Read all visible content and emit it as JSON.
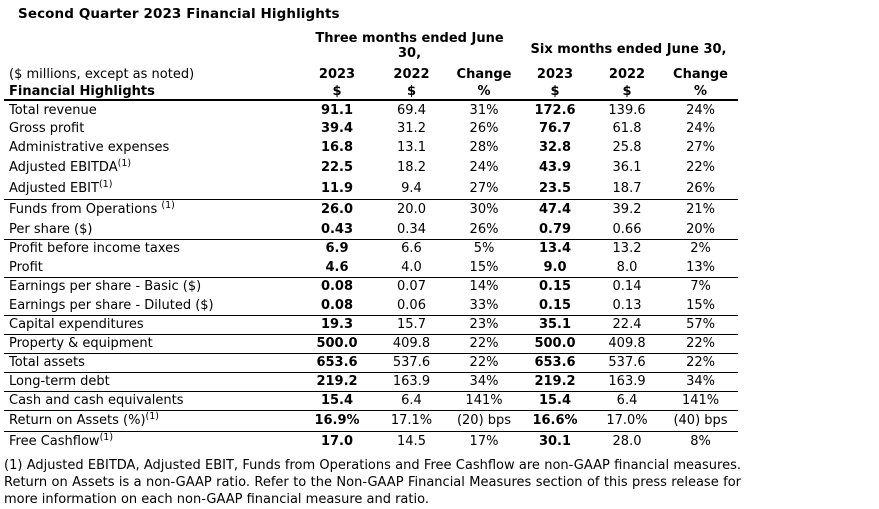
{
  "title": "Second Quarter 2023 Financial Highlights",
  "table": {
    "group_headers": [
      {
        "line1": "Three months ended June",
        "line2": "30,"
      },
      {
        "label": "Six months ended June 30,"
      }
    ],
    "meta_label": "($ millions, except as noted)",
    "col_years": [
      "2023",
      "2022",
      "Change",
      "2023",
      "2022",
      "Change"
    ],
    "section_label": "Financial Highlights",
    "col_units": [
      "$",
      "$",
      "%",
      "$",
      "$",
      "%"
    ],
    "rows": [
      {
        "label": "Total revenue",
        "sup": "",
        "values": [
          "91.1",
          "69.4",
          "31%",
          "172.6",
          "139.6",
          "24%"
        ],
        "rule": false
      },
      {
        "label": "Gross profit",
        "sup": "",
        "values": [
          "39.4",
          "31.2",
          "26%",
          "76.7",
          "61.8",
          "24%"
        ],
        "rule": false
      },
      {
        "label": "Administrative expenses",
        "sup": "",
        "values": [
          "16.8",
          "13.1",
          "28%",
          "32.8",
          "25.8",
          "27%"
        ],
        "rule": false
      },
      {
        "label": "Adjusted EBITDA",
        "sup": "(1)",
        "values": [
          "22.5",
          "18.2",
          "24%",
          "43.9",
          "36.1",
          "22%"
        ],
        "rule": false
      },
      {
        "label": "Adjusted EBIT",
        "sup": "(1)",
        "values": [
          "11.9",
          "9.4",
          "27%",
          "23.5",
          "18.7",
          "26%"
        ],
        "rule": true
      },
      {
        "label": "Funds from Operations ",
        "sup": "(1)",
        "values": [
          "26.0",
          "20.0",
          "30%",
          "47.4",
          "39.2",
          "21%"
        ],
        "rule": false
      },
      {
        "label": "Per share ($)",
        "sup": "",
        "values": [
          "0.43",
          "0.34",
          "26%",
          "0.79",
          "0.66",
          "20%"
        ],
        "rule": true
      },
      {
        "label": "Profit before income taxes",
        "sup": "",
        "values": [
          "6.9",
          "6.6",
          "5%",
          "13.4",
          "13.2",
          "2%"
        ],
        "rule": false
      },
      {
        "label": "Profit",
        "sup": "",
        "values": [
          "4.6",
          "4.0",
          "15%",
          "9.0",
          "8.0",
          "13%"
        ],
        "rule": true
      },
      {
        "label": "Earnings per share - Basic ($)",
        "sup": "",
        "values": [
          "0.08",
          "0.07",
          "14%",
          "0.15",
          "0.14",
          "7%"
        ],
        "rule": false
      },
      {
        "label": "Earnings per share - Diluted ($)",
        "sup": "",
        "values": [
          "0.08",
          "0.06",
          "33%",
          "0.15",
          "0.13",
          "15%"
        ],
        "rule": true
      },
      {
        "label": "Capital expenditures",
        "sup": "",
        "values": [
          "19.3",
          "15.7",
          "23%",
          "35.1",
          "22.4",
          "57%"
        ],
        "rule": true
      },
      {
        "label": "Property & equipment",
        "sup": "",
        "values": [
          "500.0",
          "409.8",
          "22%",
          "500.0",
          "409.8",
          "22%"
        ],
        "rule": true
      },
      {
        "label": "Total assets",
        "sup": "",
        "values": [
          "653.6",
          "537.6",
          "22%",
          "653.6",
          "537.6",
          "22%"
        ],
        "rule": true
      },
      {
        "label": "Long-term debt",
        "sup": "",
        "values": [
          "219.2",
          "163.9",
          "34%",
          "219.2",
          "163.9",
          "34%"
        ],
        "rule": true
      },
      {
        "label": "Cash and cash equivalents",
        "sup": "",
        "values": [
          "15.4",
          "6.4",
          "141%",
          "15.4",
          "6.4",
          "141%"
        ],
        "rule": true
      },
      {
        "label": "Return on Assets (%)",
        "sup": "(1)",
        "values": [
          "16.9%",
          "17.1%",
          "(20) bps",
          "16.6%",
          "17.0%",
          "(40) bps"
        ],
        "rule": true
      },
      {
        "label": "Free Cashflow",
        "sup": "(1)",
        "values": [
          "17.0",
          "14.5",
          "17%",
          "30.1",
          "28.0",
          "8%"
        ],
        "rule": false
      }
    ]
  },
  "footnote": "(1) Adjusted EBITDA, Adjusted EBIT, Funds from Operations and Free Cashflow are non-GAAP financial measures. Return on Assets is a non-GAAP ratio. Refer to the Non-GAAP Financial Measures section of this press release for more information on each non-GAAP financial measure and ratio."
}
